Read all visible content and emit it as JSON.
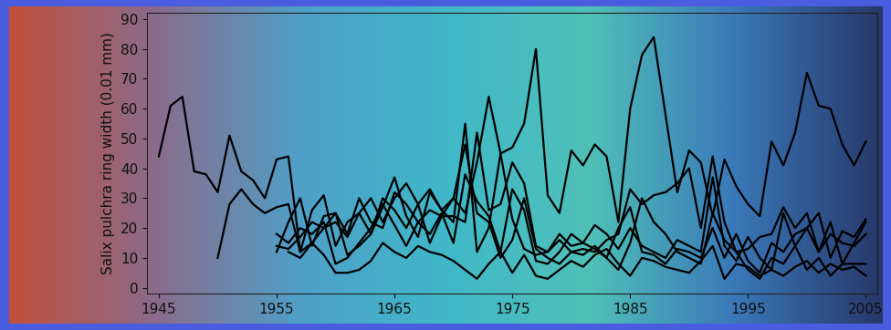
{
  "chart_data": {
    "type": "line",
    "y_label": "Salix pulchra ring width (0.01 mm)",
    "x": [
      1945,
      1946,
      1947,
      1948,
      1949,
      1950,
      1951,
      1952,
      1953,
      1954,
      1955,
      1956,
      1957,
      1958,
      1959,
      1960,
      1961,
      1962,
      1963,
      1964,
      1965,
      1966,
      1967,
      1968,
      1969,
      1970,
      1971,
      1972,
      1973,
      1974,
      1975,
      1976,
      1977,
      1978,
      1979,
      1980,
      1981,
      1982,
      1983,
      1984,
      1985,
      1986,
      1987,
      1988,
      1989,
      1990,
      1991,
      1992,
      1993,
      1994,
      1995,
      1996,
      1997,
      1998,
      1999,
      2000,
      2001,
      2002,
      2003,
      2004,
      2005
    ],
    "xlim": [
      1944,
      2006
    ],
    "xticks": [
      1945,
      1955,
      1965,
      1975,
      1985,
      1995,
      2005
    ],
    "ylim": [
      -2,
      92
    ],
    "yticks": [
      0,
      10,
      20,
      30,
      40,
      50,
      60,
      70,
      80,
      90
    ],
    "series": [
      {
        "color": "#000000",
        "values": [
          44,
          61,
          64,
          39,
          38,
          32,
          51,
          39,
          36,
          30,
          43,
          44,
          12,
          15,
          20,
          22,
          17,
          25,
          30,
          22,
          30,
          35,
          28,
          33,
          26,
          30,
          25,
          42,
          64,
          45,
          47,
          55,
          80,
          31,
          25,
          46,
          41,
          48,
          44,
          22,
          60,
          78,
          84,
          58,
          32,
          46,
          42,
          24,
          43,
          34,
          28,
          24,
          49,
          41,
          52,
          72,
          61,
          60,
          48,
          41,
          49
        ]
      },
      {
        "color": "#000000",
        "values": [
          null,
          null,
          null,
          null,
          null,
          10,
          28,
          33,
          28,
          25,
          27,
          28,
          12,
          26,
          31,
          14,
          22,
          25,
          18,
          27,
          37,
          24,
          17,
          32,
          26,
          22,
          55,
          12,
          20,
          45,
          23,
          13,
          11,
          12,
          18,
          14,
          15,
          21,
          18,
          13,
          20,
          14,
          12,
          10,
          16,
          14,
          12,
          37,
          14,
          9,
          17,
          10,
          6,
          25,
          14,
          20,
          12,
          22,
          8,
          15,
          22
        ]
      },
      {
        "color": "#000000",
        "values": [
          null,
          null,
          null,
          null,
          null,
          null,
          null,
          null,
          null,
          null,
          14,
          13,
          17,
          22,
          20,
          25,
          11,
          14,
          18,
          30,
          26,
          20,
          28,
          15,
          24,
          30,
          48,
          25,
          22,
          10,
          16,
          30,
          13,
          10,
          8,
          12,
          11,
          14,
          10,
          20,
          27,
          12,
          11,
          8,
          13,
          12,
          10,
          20,
          10,
          18,
          9,
          5,
          15,
          12,
          18,
          20,
          25,
          10,
          19,
          17,
          23
        ]
      },
      {
        "color": "#000000",
        "values": [
          null,
          null,
          null,
          null,
          null,
          null,
          null,
          null,
          null,
          null,
          18,
          15,
          20,
          18,
          22,
          8,
          10,
          15,
          20,
          28,
          21,
          14,
          22,
          18,
          25,
          15,
          38,
          29,
          24,
          12,
          33,
          26,
          9,
          8,
          12,
          18,
          15,
          13,
          10,
          6,
          15,
          30,
          22,
          18,
          12,
          10,
          8,
          25,
          16,
          12,
          6,
          3,
          10,
          8,
          14,
          6,
          10,
          4,
          8,
          8,
          8
        ]
      },
      {
        "color": "#000000",
        "values": [
          null,
          null,
          null,
          null,
          null,
          null,
          null,
          null,
          null,
          null,
          null,
          12,
          10,
          15,
          11,
          5,
          5,
          6,
          9,
          15,
          12,
          10,
          14,
          12,
          11,
          9,
          6,
          3,
          8,
          12,
          5,
          11,
          4,
          3,
          6,
          9,
          7,
          11,
          13,
          8,
          4,
          10,
          9,
          7,
          6,
          5,
          9,
          14,
          3,
          8,
          7,
          4,
          6,
          4,
          7,
          9,
          5,
          8,
          6,
          7,
          4
        ]
      },
      {
        "color": "#000000",
        "values": [
          null,
          null,
          null,
          null,
          null,
          null,
          null,
          null,
          null,
          null,
          12,
          22,
          30,
          14,
          24,
          25,
          18,
          30,
          22,
          20,
          32,
          28,
          22,
          26,
          24,
          24,
          22,
          52,
          26,
          28,
          42,
          35,
          14,
          12,
          16,
          12,
          13,
          12,
          16,
          18,
          33,
          28,
          31,
          32,
          35,
          40,
          20,
          44,
          22,
          12,
          13,
          17,
          18,
          27,
          20,
          25,
          12,
          18,
          15,
          14,
          18
        ]
      }
    ]
  }
}
